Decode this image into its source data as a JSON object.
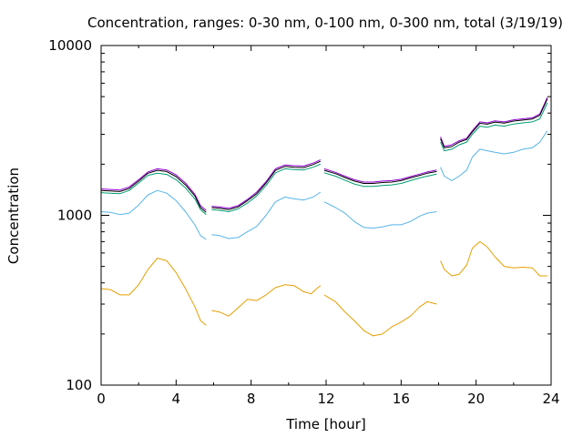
{
  "chart_data": {
    "type": "line",
    "title": "Concentration, ranges: 0-30 nm, 0-100 nm, 0-300 nm, total (3/19/19)",
    "xlabel": "Time [hour]",
    "ylabel": "Concentration",
    "xlim": [
      0,
      24
    ],
    "ylim": [
      100,
      10000
    ],
    "yscale": "log",
    "x_ticks": [
      0,
      4,
      8,
      12,
      16,
      20,
      24
    ],
    "x_tick_labels": [
      "0",
      "4",
      "8",
      "12",
      "16",
      "20",
      "24"
    ],
    "y_ticks": [
      100,
      1000,
      10000
    ],
    "y_tick_labels": [
      "100",
      "1000",
      "10000"
    ],
    "grid": false,
    "legend": "none",
    "series": [
      {
        "color": "#e69f00",
        "segments": [
          [
            [
              0,
              370
            ],
            [
              0.5,
              365
            ],
            [
              1,
              340
            ],
            [
              1.5,
              340
            ],
            [
              2,
              390
            ],
            [
              2.5,
              480
            ],
            [
              3,
              560
            ],
            [
              3.5,
              540
            ],
            [
              4,
              460
            ],
            [
              4.5,
              370
            ],
            [
              5,
              290
            ],
            [
              5.3,
              240
            ],
            [
              5.6,
              225
            ]
          ],
          [
            [
              5.9,
              275
            ],
            [
              6.3,
              270
            ],
            [
              6.8,
              255
            ],
            [
              7.3,
              285
            ],
            [
              7.8,
              320
            ],
            [
              8.3,
              315
            ],
            [
              8.8,
              340
            ],
            [
              9.3,
              375
            ],
            [
              9.8,
              390
            ],
            [
              10.3,
              385
            ],
            [
              10.8,
              355
            ],
            [
              11.2,
              345
            ],
            [
              11.5,
              370
            ],
            [
              11.7,
              385
            ]
          ],
          [
            [
              11.9,
              340
            ],
            [
              12.5,
              310
            ],
            [
              13,
              270
            ],
            [
              13.5,
              240
            ],
            [
              14,
              210
            ],
            [
              14.5,
              195
            ],
            [
              15,
              200
            ],
            [
              15.5,
              220
            ],
            [
              16,
              235
            ],
            [
              16.5,
              255
            ],
            [
              17,
              290
            ],
            [
              17.4,
              310
            ],
            [
              17.9,
              300
            ]
          ],
          [
            [
              18.1,
              540
            ],
            [
              18.3,
              480
            ],
            [
              18.7,
              440
            ],
            [
              19.1,
              450
            ],
            [
              19.5,
              510
            ],
            [
              19.8,
              640
            ],
            [
              20.2,
              700
            ],
            [
              20.6,
              650
            ],
            [
              21,
              570
            ],
            [
              21.5,
              500
            ],
            [
              22,
              490
            ],
            [
              22.5,
              495
            ],
            [
              23,
              490
            ],
            [
              23.4,
              440
            ],
            [
              23.8,
              440
            ]
          ]
        ]
      },
      {
        "color": "#56b4e9",
        "segments": [
          [
            [
              0,
              1050
            ],
            [
              0.5,
              1040
            ],
            [
              1,
              1010
            ],
            [
              1.5,
              1030
            ],
            [
              2,
              1150
            ],
            [
              2.5,
              1320
            ],
            [
              3,
              1400
            ],
            [
              3.5,
              1350
            ],
            [
              4,
              1220
            ],
            [
              4.5,
              1050
            ],
            [
              5,
              880
            ],
            [
              5.3,
              760
            ],
            [
              5.6,
              720
            ]
          ],
          [
            [
              5.9,
              770
            ],
            [
              6.3,
              760
            ],
            [
              6.8,
              730
            ],
            [
              7.3,
              740
            ],
            [
              7.8,
              800
            ],
            [
              8.3,
              860
            ],
            [
              8.8,
              1000
            ],
            [
              9.3,
              1200
            ],
            [
              9.8,
              1280
            ],
            [
              10.3,
              1250
            ],
            [
              10.8,
              1230
            ],
            [
              11.3,
              1280
            ],
            [
              11.7,
              1370
            ]
          ],
          [
            [
              11.9,
              1200
            ],
            [
              12.5,
              1110
            ],
            [
              13,
              1030
            ],
            [
              13.5,
              920
            ],
            [
              14,
              850
            ],
            [
              14.5,
              840
            ],
            [
              15,
              855
            ],
            [
              15.5,
              880
            ],
            [
              16,
              880
            ],
            [
              16.5,
              920
            ],
            [
              17,
              990
            ],
            [
              17.4,
              1030
            ],
            [
              17.9,
              1050
            ]
          ],
          [
            [
              18.1,
              1920
            ],
            [
              18.3,
              1700
            ],
            [
              18.7,
              1600
            ],
            [
              19.1,
              1700
            ],
            [
              19.5,
              1850
            ],
            [
              19.8,
              2200
            ],
            [
              20.2,
              2450
            ],
            [
              20.6,
              2400
            ],
            [
              21,
              2350
            ],
            [
              21.5,
              2300
            ],
            [
              22,
              2350
            ],
            [
              22.5,
              2450
            ],
            [
              23,
              2500
            ],
            [
              23.4,
              2700
            ],
            [
              23.8,
              3150
            ]
          ]
        ]
      },
      {
        "color": "#009e73",
        "segments": [
          [
            [
              0,
              1360
            ],
            [
              0.5,
              1350
            ],
            [
              1,
              1340
            ],
            [
              1.5,
              1400
            ],
            [
              2,
              1550
            ],
            [
              2.5,
              1720
            ],
            [
              3,
              1770
            ],
            [
              3.5,
              1740
            ],
            [
              4,
              1620
            ],
            [
              4.5,
              1450
            ],
            [
              5,
              1250
            ],
            [
              5.3,
              1080
            ],
            [
              5.6,
              1010
            ]
          ],
          [
            [
              5.9,
              1080
            ],
            [
              6.3,
              1070
            ],
            [
              6.8,
              1050
            ],
            [
              7.3,
              1090
            ],
            [
              7.8,
              1180
            ],
            [
              8.3,
              1300
            ],
            [
              8.8,
              1500
            ],
            [
              9.3,
              1780
            ],
            [
              9.8,
              1880
            ],
            [
              10.3,
              1860
            ],
            [
              10.8,
              1850
            ],
            [
              11.3,
              1920
            ],
            [
              11.7,
              2000
            ]
          ],
          [
            [
              11.9,
              1780
            ],
            [
              12.5,
              1700
            ],
            [
              13,
              1610
            ],
            [
              13.5,
              1530
            ],
            [
              14,
              1480
            ],
            [
              14.5,
              1480
            ],
            [
              15,
              1500
            ],
            [
              15.5,
              1510
            ],
            [
              16,
              1540
            ],
            [
              16.5,
              1600
            ],
            [
              17,
              1660
            ],
            [
              17.4,
              1700
            ],
            [
              17.9,
              1750
            ]
          ],
          [
            [
              18.1,
              2700
            ],
            [
              18.3,
              2400
            ],
            [
              18.7,
              2450
            ],
            [
              19.1,
              2600
            ],
            [
              19.5,
              2700
            ],
            [
              19.8,
              3000
            ],
            [
              20.2,
              3350
            ],
            [
              20.6,
              3300
            ],
            [
              21,
              3400
            ],
            [
              21.5,
              3350
            ],
            [
              22,
              3450
            ],
            [
              22.5,
              3500
            ],
            [
              23,
              3550
            ],
            [
              23.4,
              3700
            ],
            [
              23.8,
              4600
            ]
          ]
        ]
      },
      {
        "color": "#9400d3",
        "segments": [
          [
            [
              0,
              1430
            ],
            [
              0.5,
              1420
            ],
            [
              1,
              1410
            ],
            [
              1.5,
              1470
            ],
            [
              2,
              1620
            ],
            [
              2.5,
              1800
            ],
            [
              3,
              1880
            ],
            [
              3.5,
              1850
            ],
            [
              4,
              1730
            ],
            [
              4.5,
              1550
            ],
            [
              5,
              1330
            ],
            [
              5.3,
              1140
            ],
            [
              5.6,
              1070
            ]
          ],
          [
            [
              5.9,
              1130
            ],
            [
              6.3,
              1120
            ],
            [
              6.8,
              1100
            ],
            [
              7.3,
              1140
            ],
            [
              7.8,
              1240
            ],
            [
              8.3,
              1370
            ],
            [
              8.8,
              1580
            ],
            [
              9.3,
              1880
            ],
            [
              9.8,
              1980
            ],
            [
              10.3,
              1960
            ],
            [
              10.8,
              1950
            ],
            [
              11.3,
              2030
            ],
            [
              11.7,
              2120
            ]
          ],
          [
            [
              11.9,
              1880
            ],
            [
              12.5,
              1790
            ],
            [
              13,
              1700
            ],
            [
              13.5,
              1620
            ],
            [
              14,
              1570
            ],
            [
              14.5,
              1570
            ],
            [
              15,
              1590
            ],
            [
              15.5,
              1600
            ],
            [
              16,
              1630
            ],
            [
              16.5,
              1690
            ],
            [
              17,
              1750
            ],
            [
              17.4,
              1800
            ],
            [
              17.9,
              1850
            ]
          ],
          [
            [
              18.1,
              2900
            ],
            [
              18.3,
              2550
            ],
            [
              18.7,
              2600
            ],
            [
              19.1,
              2750
            ],
            [
              19.5,
              2850
            ],
            [
              19.8,
              3150
            ],
            [
              20.2,
              3550
            ],
            [
              20.6,
              3500
            ],
            [
              21,
              3600
            ],
            [
              21.5,
              3550
            ],
            [
              22,
              3650
            ],
            [
              22.5,
              3700
            ],
            [
              23,
              3750
            ],
            [
              23.4,
              3950
            ],
            [
              23.8,
              4950
            ]
          ]
        ]
      },
      {
        "color": "#000000",
        "segments": [
          [
            [
              0,
              1400
            ],
            [
              0.5,
              1390
            ],
            [
              1,
              1380
            ],
            [
              1.5,
              1440
            ],
            [
              2,
              1590
            ],
            [
              2.5,
              1770
            ],
            [
              3,
              1840
            ],
            [
              3.5,
              1810
            ],
            [
              4,
              1690
            ],
            [
              4.5,
              1510
            ],
            [
              5,
              1300
            ],
            [
              5.3,
              1110
            ],
            [
              5.6,
              1040
            ]
          ],
          [
            [
              5.9,
              1110
            ],
            [
              6.3,
              1100
            ],
            [
              6.8,
              1080
            ],
            [
              7.3,
              1120
            ],
            [
              7.8,
              1220
            ],
            [
              8.3,
              1340
            ],
            [
              8.8,
              1550
            ],
            [
              9.3,
              1840
            ],
            [
              9.8,
              1940
            ],
            [
              10.3,
              1920
            ],
            [
              10.8,
              1910
            ],
            [
              11.3,
              1990
            ],
            [
              11.7,
              2080
            ]
          ],
          [
            [
              11.9,
              1840
            ],
            [
              12.5,
              1760
            ],
            [
              13,
              1670
            ],
            [
              13.5,
              1590
            ],
            [
              14,
              1540
            ],
            [
              14.5,
              1540
            ],
            [
              15,
              1560
            ],
            [
              15.5,
              1570
            ],
            [
              16,
              1600
            ],
            [
              16.5,
              1660
            ],
            [
              17,
              1720
            ],
            [
              17.4,
              1770
            ],
            [
              17.9,
              1810
            ]
          ],
          [
            [
              18.1,
              2820
            ],
            [
              18.3,
              2500
            ],
            [
              18.7,
              2540
            ],
            [
              19.1,
              2700
            ],
            [
              19.5,
              2800
            ],
            [
              19.8,
              3100
            ],
            [
              20.2,
              3480
            ],
            [
              20.6,
              3440
            ],
            [
              21,
              3540
            ],
            [
              21.5,
              3490
            ],
            [
              22,
              3590
            ],
            [
              22.5,
              3640
            ],
            [
              23,
              3690
            ],
            [
              23.4,
              3880
            ],
            [
              23.8,
              4850
            ]
          ]
        ]
      }
    ]
  }
}
